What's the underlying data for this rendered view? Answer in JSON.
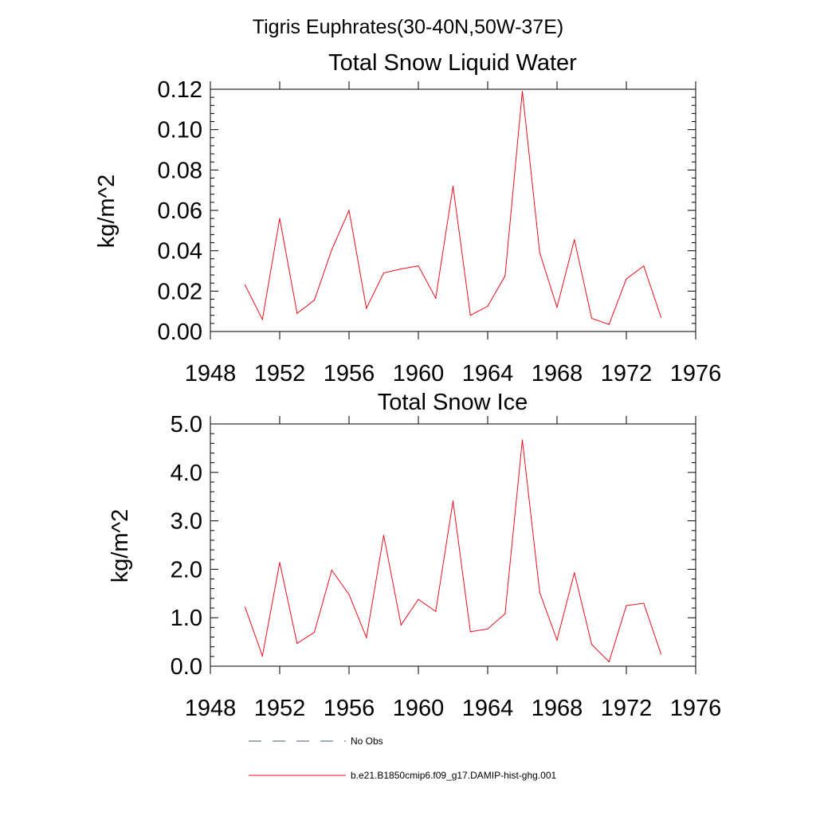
{
  "figure": {
    "suptitle": "Tigris Euphrates(30-40N,50W-37E)"
  },
  "chart_data": [
    {
      "type": "line",
      "title": "Total Snow Liquid Water",
      "xlabel": "",
      "ylabel": "kg/m^2",
      "xlim": [
        1948,
        1976
      ],
      "ylim": [
        0,
        0.12
      ],
      "x_ticks": [
        "1948",
        "1952",
        "1956",
        "1960",
        "1964",
        "1968",
        "1972",
        "1976"
      ],
      "y_ticks": [
        "0.00",
        "0.02",
        "0.04",
        "0.06",
        "0.08",
        "0.10",
        "0.12"
      ],
      "grid": false,
      "x": [
        1950,
        1951,
        1952,
        1953,
        1954,
        1955,
        1956,
        1957,
        1958,
        1959,
        1960,
        1961,
        1962,
        1963,
        1964,
        1965,
        1966,
        1967,
        1968,
        1969,
        1970,
        1971,
        1972,
        1973,
        1974
      ],
      "series": [
        {
          "name": "b.e21.B1850cmip6.f09_g17.DAMIP-hist-ghg.001",
          "color": "#e8101c",
          "values": [
            0.023,
            0.006,
            0.056,
            0.009,
            0.0155,
            0.0405,
            0.06,
            0.0115,
            0.029,
            0.031,
            0.0325,
            0.0165,
            0.072,
            0.008,
            0.0125,
            0.0275,
            0.119,
            0.039,
            0.012,
            0.0455,
            0.0065,
            0.0035,
            0.026,
            0.0325,
            0.007
          ]
        }
      ]
    },
    {
      "type": "line",
      "title": "Total Snow Ice",
      "xlabel": "",
      "ylabel": "kg/m^2",
      "xlim": [
        1948,
        1976
      ],
      "ylim": [
        0,
        5
      ],
      "x_ticks": [
        "1948",
        "1952",
        "1956",
        "1960",
        "1964",
        "1968",
        "1972",
        "1976"
      ],
      "y_ticks": [
        "0.0",
        "1.0",
        "2.0",
        "3.0",
        "4.0",
        "5.0"
      ],
      "grid": false,
      "x": [
        1950,
        1951,
        1952,
        1953,
        1954,
        1955,
        1956,
        1957,
        1958,
        1959,
        1960,
        1961,
        1962,
        1963,
        1964,
        1965,
        1966,
        1967,
        1968,
        1969,
        1970,
        1971,
        1972,
        1973,
        1974
      ],
      "series": [
        {
          "name": "b.e21.B1850cmip6.f09_g17.DAMIP-hist-ghg.001",
          "color": "#e8101c",
          "values": [
            1.22,
            0.21,
            2.14,
            0.47,
            0.7,
            1.98,
            1.48,
            0.59,
            2.7,
            0.85,
            1.38,
            1.13,
            3.41,
            0.71,
            0.77,
            1.08,
            4.67,
            1.52,
            0.54,
            1.93,
            0.45,
            0.09,
            1.25,
            1.3,
            0.25
          ]
        }
      ]
    }
  ],
  "legend": {
    "placement": "bottom-center",
    "entries": [
      {
        "label": "No Obs",
        "style": "dashed",
        "color": "#4a5a7a"
      },
      {
        "label": "b.e21.B1850cmip6.f09_g17.DAMIP-hist-ghg.001",
        "style": "solid",
        "color": "#e8101c"
      }
    ]
  }
}
